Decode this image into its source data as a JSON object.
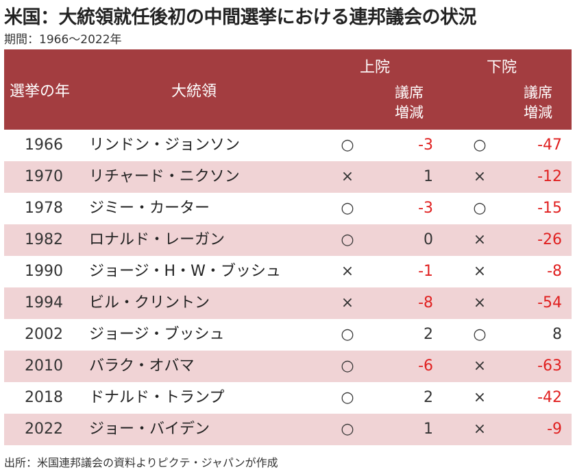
{
  "title": "米国：大統領就任後初の中間選挙における連邦議会の状況",
  "subtitle": "期間：1966～2022年",
  "header": {
    "year": "選挙の年",
    "president": "大統領",
    "upper": "上院",
    "lower": "下院",
    "upper_change": "議席\n増減",
    "lower_change": "議席\n増減"
  },
  "rows": [
    {
      "year": "1966",
      "president": "リンドン・ジョンソン",
      "upper": "○",
      "upper_change": "-3",
      "lower": "○",
      "lower_change": "-47"
    },
    {
      "year": "1970",
      "president": "リチャード・ニクソン",
      "upper": "×",
      "upper_change": "1",
      "lower": "×",
      "lower_change": "-12"
    },
    {
      "year": "1978",
      "president": "ジミー・カーター",
      "upper": "○",
      "upper_change": "-3",
      "lower": "○",
      "lower_change": "-15"
    },
    {
      "year": "1982",
      "president": "ロナルド・レーガン",
      "upper": "○",
      "upper_change": "0",
      "lower": "×",
      "lower_change": "-26"
    },
    {
      "year": "1990",
      "president": "ジョージ・H・W・ブッシュ",
      "upper": "×",
      "upper_change": "-1",
      "lower": "×",
      "lower_change": "-8"
    },
    {
      "year": "1994",
      "president": "ビル・クリントン",
      "upper": "×",
      "upper_change": "-8",
      "lower": "×",
      "lower_change": "-54"
    },
    {
      "year": "2002",
      "president": "ジョージ・ブッシュ",
      "upper": "○",
      "upper_change": "2",
      "lower": "○",
      "lower_change": "8"
    },
    {
      "year": "2010",
      "president": "バラク・オバマ",
      "upper": "○",
      "upper_change": "-6",
      "lower": "×",
      "lower_change": "-63"
    },
    {
      "year": "2018",
      "president": "ドナルド・トランプ",
      "upper": "○",
      "upper_change": "2",
      "lower": "×",
      "lower_change": "-42"
    },
    {
      "year": "2022",
      "president": "ジョー・バイデン",
      "upper": "○",
      "upper_change": "1",
      "lower": "×",
      "lower_change": "-9"
    }
  ],
  "source": "出所：米国連邦議会の資料よりピクテ・ジャパンが作成",
  "colors": {
    "header_bg": "#a33d40",
    "stripe_bg": "#f0d3d5",
    "negative": "#e02020"
  }
}
